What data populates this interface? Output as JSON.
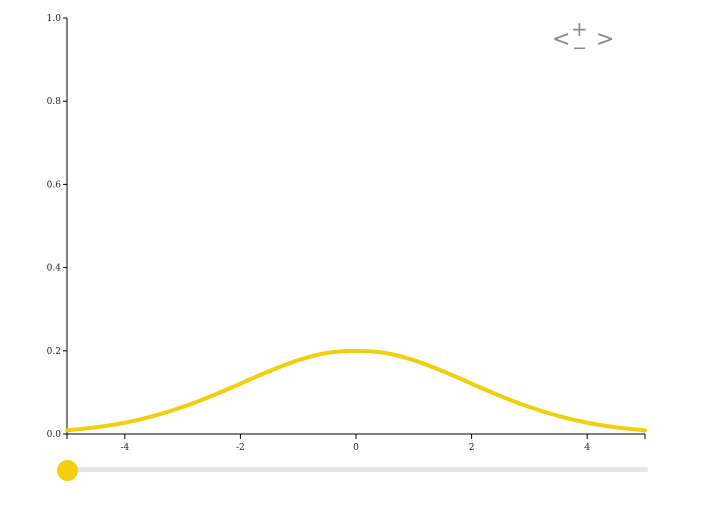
{
  "chart_data": {
    "type": "line",
    "title": "",
    "xlabel": "",
    "ylabel": "",
    "xlim": [
      -5,
      5
    ],
    "ylim": [
      0,
      1.0
    ],
    "x_ticks": [
      -4,
      -2,
      0,
      2,
      4
    ],
    "x_tick_labels": [
      "-4",
      "-2",
      "0",
      "2",
      "4"
    ],
    "y_ticks": [
      0,
      0.2,
      0.4,
      0.6,
      0.8,
      1.0
    ],
    "y_tick_labels": [
      "0.0",
      "0.2",
      "0.4",
      "0.6",
      "0.8",
      "1.0"
    ],
    "grid": false,
    "legend": "none",
    "series": [
      {
        "color": "#f2cf0a",
        "x": [
          -5,
          -4.5,
          -4,
          -3.5,
          -3,
          -2.5,
          -2,
          -1.5,
          -1,
          -0.5,
          0,
          0.5,
          1,
          1.5,
          2,
          2.5,
          3,
          3.5,
          4,
          4.5,
          5
        ],
        "y": [
          0.0088,
          0.0161,
          0.027,
          0.0433,
          0.0648,
          0.0913,
          0.121,
          0.1511,
          0.1774,
          0.195,
          0.1995,
          0.195,
          0.1774,
          0.1511,
          0.121,
          0.0913,
          0.0648,
          0.0433,
          0.027,
          0.0161,
          0.0088
        ]
      }
    ]
  },
  "controls": {
    "prev_glyph": "<",
    "zoom_in_glyph": "+",
    "zoom_out_glyph": "−",
    "next_glyph": ">",
    "slider": {
      "value": 0.0,
      "track_color": "#e6e6e6",
      "handle_color": "#f2cf0a"
    }
  }
}
